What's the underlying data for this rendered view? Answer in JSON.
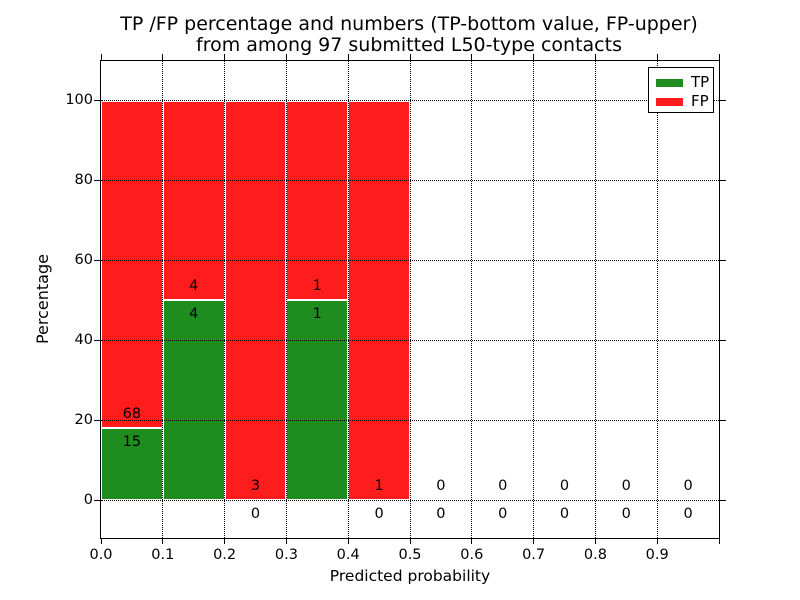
{
  "chart_data": {
    "type": "bar",
    "stacked": true,
    "title_line1": "TP /FP percentage and numbers (TP-bottom value, FP-upper)",
    "title_line2": "from among 97 submitted L50-type contacts",
    "xlabel": "Predicted probability",
    "ylabel": "Percentage",
    "xlim": [
      0,
      1
    ],
    "ylim": [
      -9.5,
      110
    ],
    "xticks": [
      0,
      0.1,
      0.2,
      0.3,
      0.4,
      0.5,
      0.6,
      0.7,
      0.8,
      0.9
    ],
    "xtick_labels": [
      "0.0",
      "0.1",
      "0.2",
      "0.3",
      "0.4",
      "0.5",
      "0.6",
      "0.7",
      "0.8",
      "0.9"
    ],
    "yticks": [
      0,
      20,
      40,
      60,
      80,
      100
    ],
    "grid": true,
    "legend_position": "upper right",
    "legend": [
      {
        "label": "TP",
        "color": "#1f8c1f"
      },
      {
        "label": "FP",
        "color": "#ff1c1c"
      }
    ],
    "bins": [
      {
        "x0": 0.0,
        "x1": 0.1,
        "tp": 15,
        "fp": 68,
        "tp_pct": 18.07,
        "fp_pct": 81.93
      },
      {
        "x0": 0.1,
        "x1": 0.2,
        "tp": 4,
        "fp": 4,
        "tp_pct": 50,
        "fp_pct": 50
      },
      {
        "x0": 0.2,
        "x1": 0.3,
        "tp": 0,
        "fp": 3,
        "tp_pct": 0,
        "fp_pct": 100
      },
      {
        "x0": 0.3,
        "x1": 0.4,
        "tp": 1,
        "fp": 1,
        "tp_pct": 50,
        "fp_pct": 50
      },
      {
        "x0": 0.4,
        "x1": 0.5,
        "tp": 0,
        "fp": 1,
        "tp_pct": 0,
        "fp_pct": 100
      },
      {
        "x0": 0.5,
        "x1": 0.6,
        "tp": 0,
        "fp": 0,
        "tp_pct": 0,
        "fp_pct": 0
      },
      {
        "x0": 0.6,
        "x1": 0.7,
        "tp": 0,
        "fp": 0,
        "tp_pct": 0,
        "fp_pct": 0
      },
      {
        "x0": 0.7,
        "x1": 0.8,
        "tp": 0,
        "fp": 0,
        "tp_pct": 0,
        "fp_pct": 0
      },
      {
        "x0": 0.8,
        "x1": 0.9,
        "tp": 0,
        "fp": 0,
        "tp_pct": 0,
        "fp_pct": 0
      },
      {
        "x0": 0.9,
        "x1": 1.0,
        "tp": 0,
        "fp": 0,
        "tp_pct": 0,
        "fp_pct": 0
      }
    ]
  },
  "colors": {
    "tp_green": "#1f8c1f",
    "fp_red": "#ff1c1c",
    "grid": "#000000",
    "background": "#ffffff"
  }
}
